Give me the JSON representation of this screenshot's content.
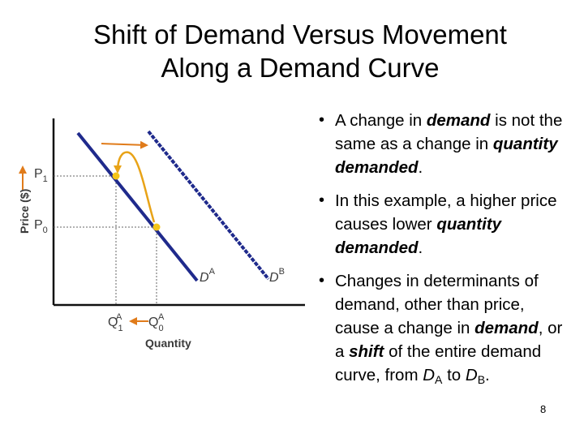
{
  "slide": {
    "title_line1": "Shift of Demand Versus Movement",
    "title_line2": "Along a Demand Curve",
    "page_number": "8"
  },
  "diagram": {
    "y_axis_label": "Price ($)",
    "x_axis_label": "Quantity",
    "price_labels": [
      {
        "main": "P",
        "sub": "1"
      },
      {
        "main": "P",
        "sub": "0"
      }
    ],
    "quantity_labels": [
      {
        "main": "Q",
        "sub": "1",
        "sup": "A"
      },
      {
        "main": "Q",
        "sub": "0",
        "sup": "A"
      }
    ],
    "curve_labels": [
      {
        "main": "D",
        "sup": "A"
      },
      {
        "main": "D",
        "sup": "B"
      }
    ],
    "colors": {
      "demand_a": "#1f2a8c",
      "demand_b": "#1f2a8c",
      "movement_arrow": "#e8a317",
      "points": "#f5c518",
      "shift_arrow": "#e07b1a",
      "guides": "#666666"
    }
  },
  "bullets": {
    "b1": {
      "t1": "A change in ",
      "e1": "demand",
      "t2": " is not the same as a change in ",
      "e2": "quantity demanded",
      "t3": "."
    },
    "b2": {
      "t1": "In this example, a higher price causes lower ",
      "e1": "quantity demanded",
      "t2": "."
    },
    "b3": {
      "t1": "Changes in determinants of demand, other than price, cause a change in ",
      "e1": "demand",
      "t2": ", or a ",
      "e2": "shift",
      "t3": " of the entire demand curve, from ",
      "d1": "D",
      "s1": "A",
      "t4": " to ",
      "d2": "D",
      "s2": "B",
      "t5": "."
    }
  }
}
